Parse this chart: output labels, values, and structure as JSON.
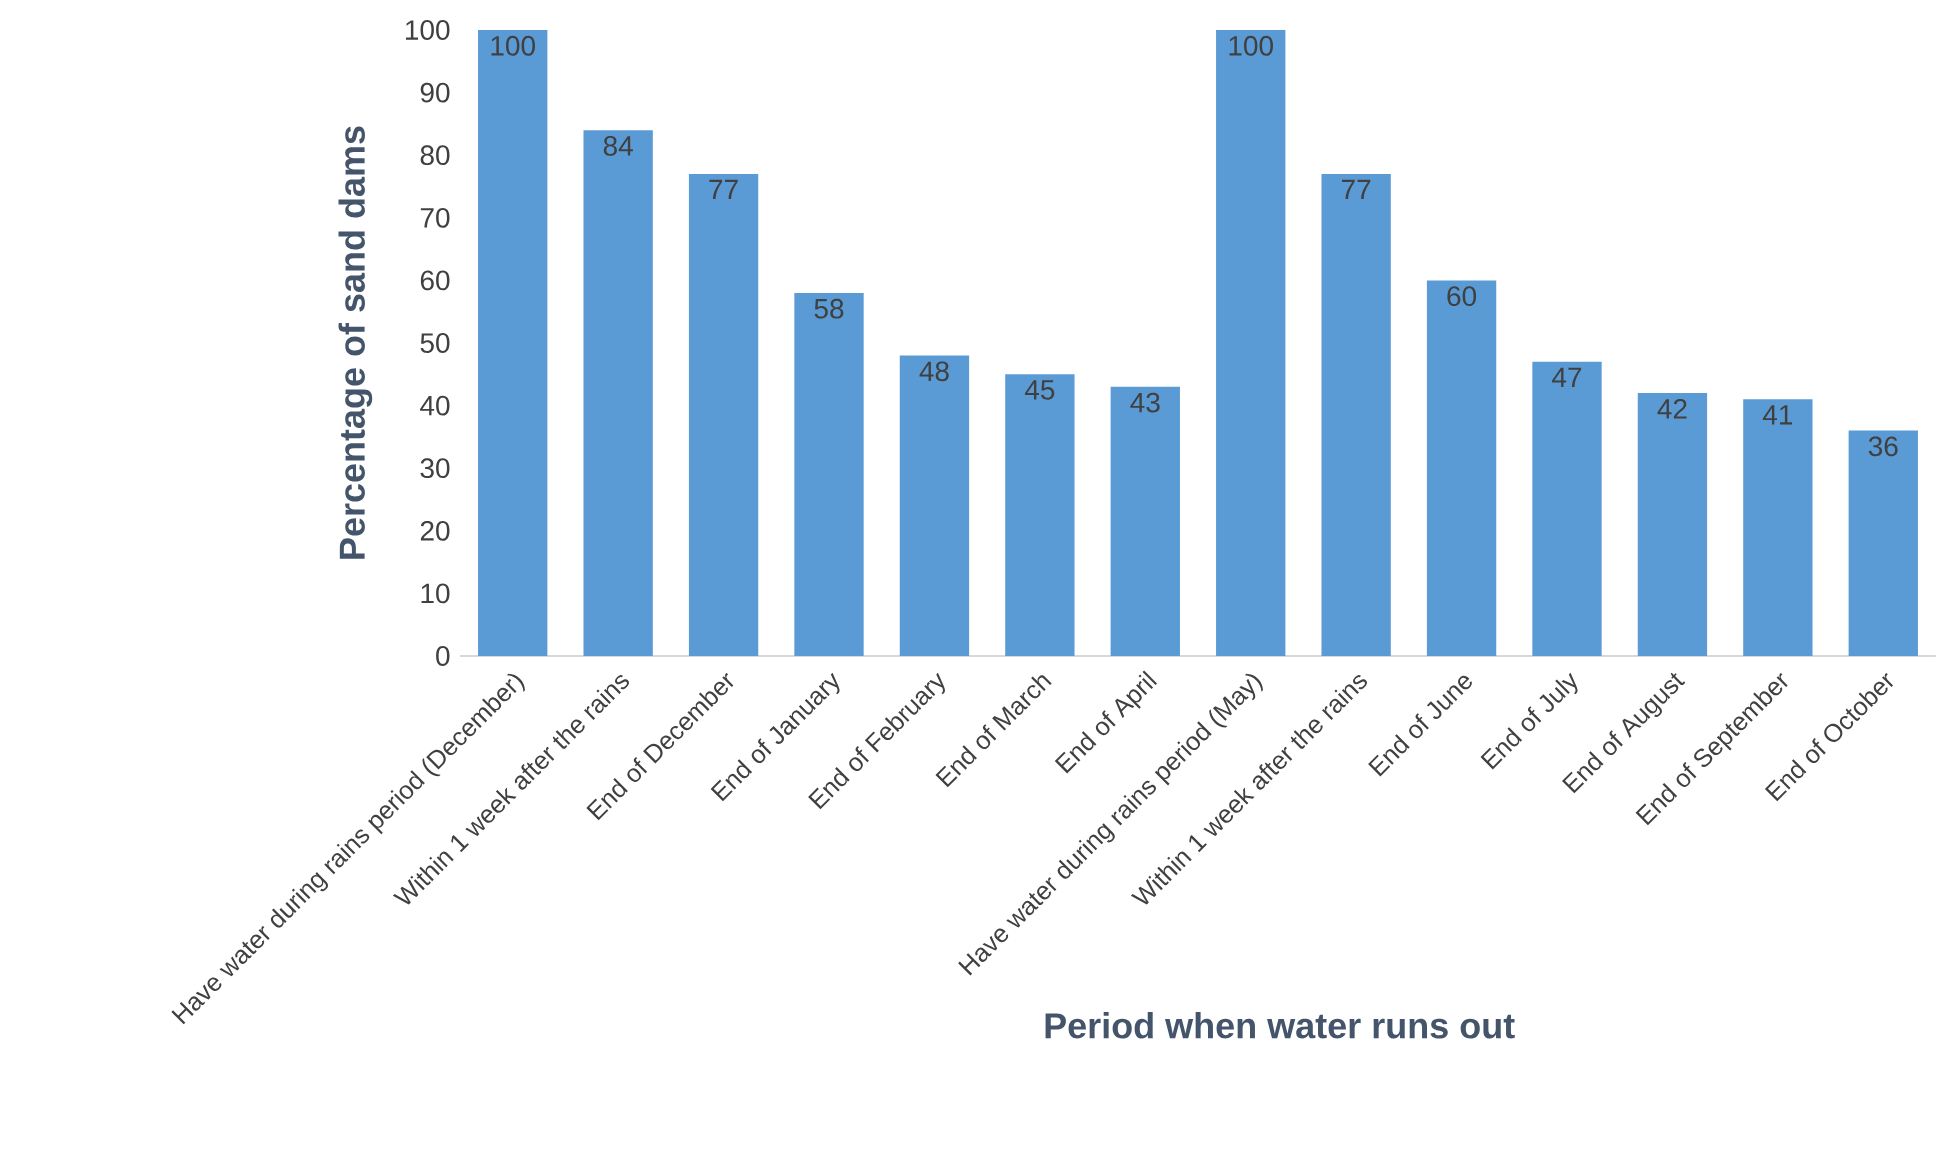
{
  "chart_data": {
    "type": "bar",
    "xlabel": "Period when water runs out",
    "ylabel": "Percentage of sand dams",
    "categories": [
      "Have water during rains period (December)",
      "Within 1 week after the rains",
      "End of December",
      "End of January",
      "End of February",
      "End of March",
      "End of April",
      "Have water during rains period (May)",
      "Within 1 week after the rains",
      "End of June",
      "End of July",
      "End of August",
      "End of September",
      "End of October"
    ],
    "values": [
      100,
      84,
      77,
      58,
      48,
      45,
      43,
      100,
      77,
      60,
      47,
      42,
      41,
      36
    ],
    "color": "#5b9bd5",
    "ylim": [
      0,
      100
    ],
    "yticks": [
      0,
      10,
      20,
      30,
      40,
      50,
      60,
      70,
      80,
      90,
      100
    ],
    "data_labels": true
  }
}
